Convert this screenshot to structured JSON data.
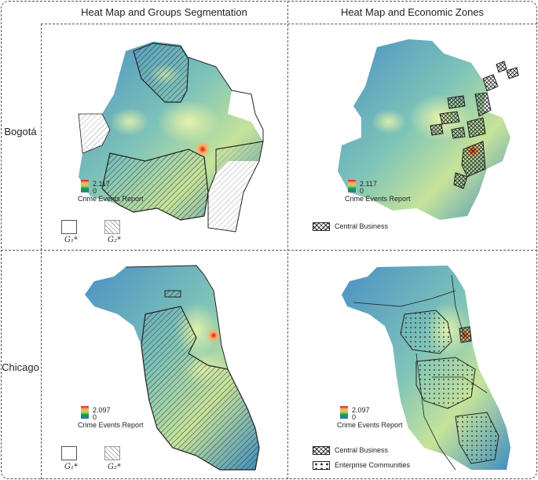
{
  "columns": {
    "left_title": "Heat Map and Groups Segmentation",
    "right_title": "Heat Map and Economic Zones"
  },
  "rows": {
    "bogota_label": "Bogotá",
    "chicago_label": "Chicago"
  },
  "bogota": {
    "legend_max": "2.117",
    "legend_min": "0",
    "legend_title": "Crime Events Report",
    "group1": "G₁*",
    "group2": "G₂*",
    "zone_central": "Central Business"
  },
  "chicago": {
    "legend_max": "2.097",
    "legend_min": "0",
    "legend_title": "Crime Events Report",
    "group1": "G₁*",
    "group2": "G₂*",
    "zone_central": "Central Business",
    "zone_enterprise": "Enterprise Communities"
  },
  "colors": {
    "low": "#2c7bb6",
    "mid": "#a6d96a",
    "high": "#d7191c",
    "outline": "#222222"
  }
}
